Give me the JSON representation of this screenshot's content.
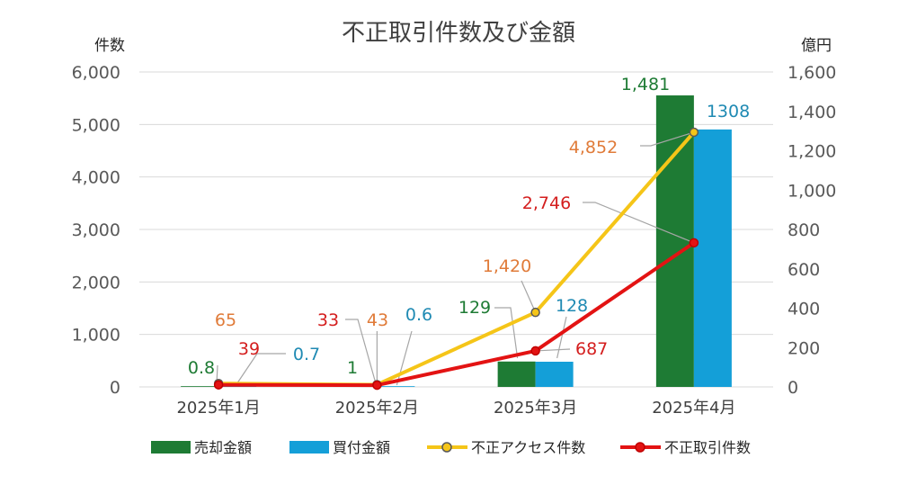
{
  "chart_data": {
    "type": "bar-line-combo",
    "title": "不正取引件数及び金額",
    "y_left_label": "件数",
    "y_right_label": "億円",
    "y_left_range": [
      0,
      6000
    ],
    "y_right_range": [
      0,
      1600
    ],
    "y_left_ticks": [
      "0",
      "1,000",
      "2,000",
      "3,000",
      "4,000",
      "5,000",
      "6,000"
    ],
    "y_right_ticks": [
      "0",
      "200",
      "400",
      "600",
      "800",
      "1,000",
      "1,200",
      "1,400",
      "1,600"
    ],
    "categories": [
      "2025年1月",
      "2025年2月",
      "2025年3月",
      "2025年4月"
    ],
    "grid": true,
    "legend_position": "bottom",
    "series": [
      {
        "name": "売却金額",
        "type": "bar",
        "axis": "right",
        "color": "#1e7b34",
        "values": [
          0.8,
          1,
          129,
          1481
        ],
        "labels": [
          "0.8",
          "1",
          "129",
          "1,481"
        ]
      },
      {
        "name": "買付金額",
        "type": "bar",
        "axis": "right",
        "color": "#149fd8",
        "values": [
          0.7,
          0.6,
          128,
          1308
        ],
        "labels": [
          "0.7",
          "0.6",
          "128",
          "1308"
        ]
      },
      {
        "name": "不正アクセス件数",
        "type": "line",
        "axis": "left",
        "color": "#f5c518",
        "label_color": "#e07b39",
        "values": [
          65,
          43,
          1420,
          4852
        ],
        "labels": [
          "65",
          "43",
          "1,420",
          "4,852"
        ]
      },
      {
        "name": "不正取引件数",
        "type": "line",
        "axis": "left",
        "color": "#e31313",
        "label_color": "#d41e1e",
        "values": [
          39,
          33,
          687,
          2746
        ],
        "labels": [
          "39",
          "33",
          "687",
          "2,746"
        ]
      }
    ]
  }
}
